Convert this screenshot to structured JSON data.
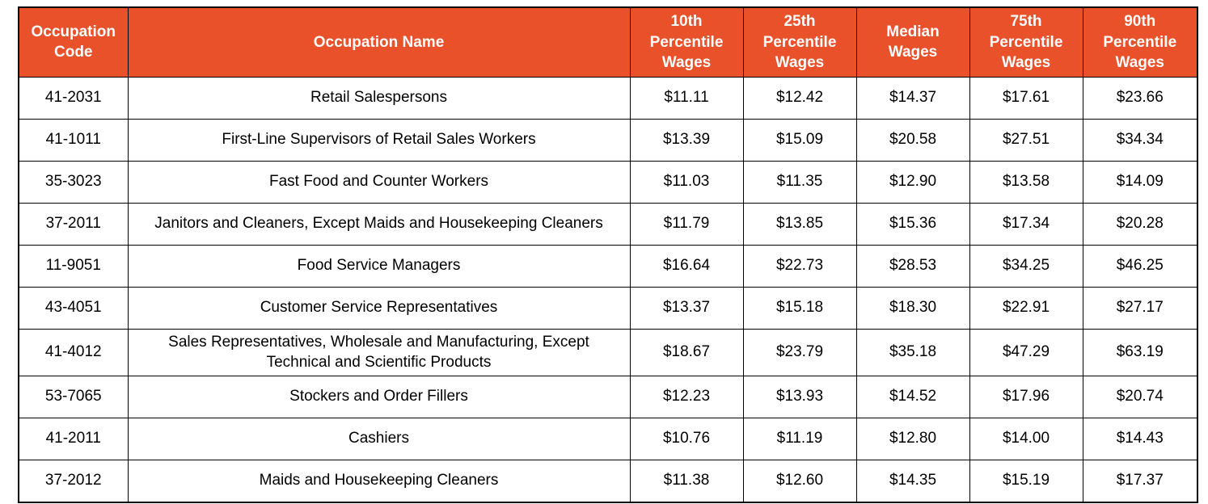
{
  "colors": {
    "header_bg": "#E8512A",
    "header_text": "#FFFFFF",
    "body_text": "#000000",
    "border": "#000000",
    "row_bg": "#FFFFFF"
  },
  "table": {
    "columns": [
      {
        "key": "code",
        "label": "Occupation Code"
      },
      {
        "key": "name",
        "label": "Occupation Name"
      },
      {
        "key": "p10",
        "label": "10th Percentile Wages"
      },
      {
        "key": "p25",
        "label": "25th Percentile Wages"
      },
      {
        "key": "median",
        "label": "Median Wages"
      },
      {
        "key": "p75",
        "label": "75th Percentile Wages"
      },
      {
        "key": "p90",
        "label": "90th Percentile Wages"
      }
    ],
    "rows": [
      {
        "code": "41-2031",
        "name": "Retail Salespersons",
        "p10": "$11.11",
        "p25": "$12.42",
        "median": "$14.37",
        "p75": "$17.61",
        "p90": "$23.66"
      },
      {
        "code": "41-1011",
        "name": "First-Line Supervisors of Retail Sales Workers",
        "p10": "$13.39",
        "p25": "$15.09",
        "median": "$20.58",
        "p75": "$27.51",
        "p90": "$34.34"
      },
      {
        "code": "35-3023",
        "name": "Fast Food and Counter Workers",
        "p10": "$11.03",
        "p25": "$11.35",
        "median": "$12.90",
        "p75": "$13.58",
        "p90": "$14.09"
      },
      {
        "code": "37-2011",
        "name": "Janitors and Cleaners, Except Maids and Housekeeping Cleaners",
        "p10": "$11.79",
        "p25": "$13.85",
        "median": "$15.36",
        "p75": "$17.34",
        "p90": "$20.28"
      },
      {
        "code": "11-9051",
        "name": "Food Service Managers",
        "p10": "$16.64",
        "p25": "$22.73",
        "median": "$28.53",
        "p75": "$34.25",
        "p90": "$46.25"
      },
      {
        "code": "43-4051",
        "name": "Customer Service Representatives",
        "p10": "$13.37",
        "p25": "$15.18",
        "median": "$18.30",
        "p75": "$22.91",
        "p90": "$27.17"
      },
      {
        "code": "41-4012",
        "name": "Sales Representatives, Wholesale and Manufacturing, Except Technical and Scientific Products",
        "p10": "$18.67",
        "p25": "$23.79",
        "median": "$35.18",
        "p75": "$47.29",
        "p90": "$63.19"
      },
      {
        "code": "53-7065",
        "name": "Stockers and Order Fillers",
        "p10": "$12.23",
        "p25": "$13.93",
        "median": "$14.52",
        "p75": "$17.96",
        "p90": "$20.74"
      },
      {
        "code": "41-2011",
        "name": "Cashiers",
        "p10": "$10.76",
        "p25": "$11.19",
        "median": "$12.80",
        "p75": "$14.00",
        "p90": "$14.43"
      },
      {
        "code": "37-2012",
        "name": "Maids and Housekeeping Cleaners",
        "p10": "$11.38",
        "p25": "$12.60",
        "median": "$14.35",
        "p75": "$15.19",
        "p90": "$17.37"
      }
    ]
  }
}
